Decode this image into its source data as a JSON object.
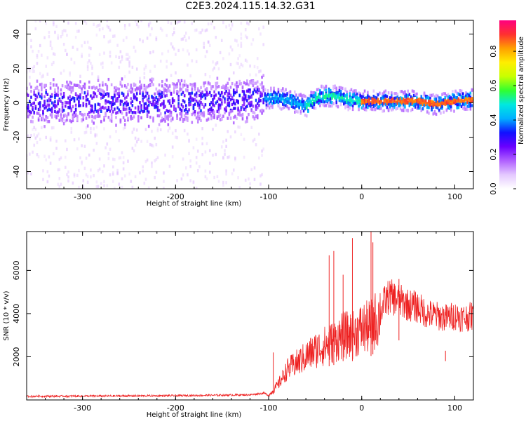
{
  "title": "C2E3.2024.115.14.32.G31",
  "colors": {
    "series": "#ee2222",
    "frame": "#000000",
    "background": "#ffffff"
  },
  "chart_data": [
    {
      "type": "heatmap",
      "title": "C2E3.2024.115.14.32.G31",
      "xlabel": "Height of straight line (km)",
      "ylabel": "Frequency (Hz)",
      "xlim": [
        -360,
        120
      ],
      "ylim": [
        -50,
        48
      ],
      "x_ticks": [
        -300,
        -200,
        -100,
        0,
        100
      ],
      "x_tick_labels": [
        "-300",
        "-200",
        "-100",
        "0",
        "100"
      ],
      "y_ticks": [
        -40,
        -20,
        0,
        20,
        40
      ],
      "y_tick_labels": [
        "-40",
        "-20",
        "0",
        "20",
        "40"
      ],
      "colorbar": {
        "label": "Normalized spectral amplitude",
        "range": [
          0,
          0.98
        ],
        "ticks": [
          0.0,
          0.2,
          0.4,
          0.6,
          0.8
        ],
        "tick_labels": [
          "0.0",
          "0.2",
          "0.4",
          "0.6",
          "0.8"
        ],
        "colormap": [
          "#ffffff",
          "#e4c8ff",
          "#b060ff",
          "#6a00ff",
          "#1010ff",
          "#00b0ff",
          "#00e8e0",
          "#30ff30",
          "#c8ff00",
          "#ffee00",
          "#ffa000",
          "#ff3030",
          "#ff0080"
        ]
      },
      "ridge_line": {
        "x": [
          -360,
          -300,
          -200,
          -110,
          -100,
          -80,
          -60,
          -45,
          -30,
          -15,
          0,
          20,
          40,
          60,
          80,
          100,
          120
        ],
        "y": [
          0,
          0,
          0,
          2,
          3,
          2,
          -2,
          4,
          4,
          2,
          1,
          1,
          1,
          1,
          -1,
          1,
          2
        ]
      },
      "grid": false
    },
    {
      "type": "line",
      "xlabel": "Height of straight line (km)",
      "ylabel": "SNR (10 * v/v)",
      "xlim": [
        -360,
        120
      ],
      "ylim": [
        0,
        7800
      ],
      "x_ticks": [
        -300,
        -200,
        -100,
        0,
        100
      ],
      "x_tick_labels": [
        "-300",
        "-200",
        "-100",
        "0",
        "100"
      ],
      "y_ticks": [
        2000,
        4000,
        6000
      ],
      "y_tick_labels": [
        "2000",
        "4000",
        "6000"
      ],
      "series": [
        {
          "color": "#ee2222",
          "x": [
            -360,
            -300,
            -200,
            -120,
            -105,
            -100,
            -90,
            -80,
            -70,
            -60,
            -50,
            -40,
            -30,
            -20,
            -10,
            0,
            10,
            20,
            25,
            30,
            40,
            50,
            60,
            70,
            80,
            90,
            100,
            110,
            120
          ],
          "y": [
            150,
            160,
            180,
            220,
            300,
            200,
            700,
            1400,
            1700,
            2000,
            2300,
            2500,
            2700,
            3000,
            3000,
            3300,
            3400,
            4000,
            4600,
            4800,
            4600,
            4400,
            4300,
            4000,
            3900,
            3800,
            3900,
            3800,
            3900
          ]
        }
      ],
      "spikes": [
        {
          "x": -95,
          "y": 2200
        },
        {
          "x": -35,
          "y": 6700
        },
        {
          "x": -30,
          "y": 6900
        },
        {
          "x": -20,
          "y": 5800
        },
        {
          "x": -10,
          "y": 7500
        },
        {
          "x": 10,
          "y": 7800
        },
        {
          "x": 12,
          "y": 7300
        },
        {
          "x": 40,
          "y": 5600
        },
        {
          "x": 90,
          "y": 1800
        }
      ],
      "grid": false
    }
  ]
}
